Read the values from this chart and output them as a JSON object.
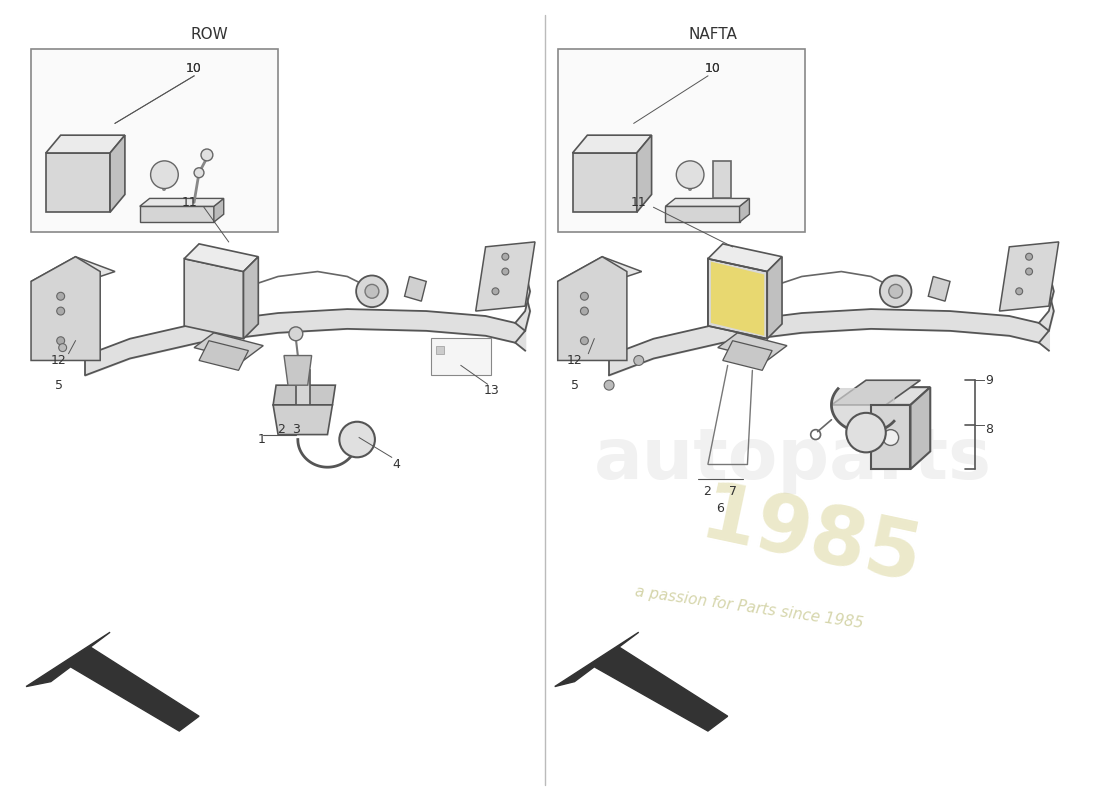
{
  "background_color": "#ffffff",
  "left_label": "ROW",
  "right_label": "NAFTA",
  "divider_color": "#cccccc",
  "line_color": "#333333",
  "label_color": "#333333",
  "fill_light": "#e8e8e8",
  "fill_medium": "#d0d0d0",
  "fill_dark": "#b0b0b0",
  "watermark_color": "#e0e0e0",
  "watermark_yellow": "#e8e0a0",
  "part_label_fontsize": 9,
  "section_label_fontsize": 11
}
